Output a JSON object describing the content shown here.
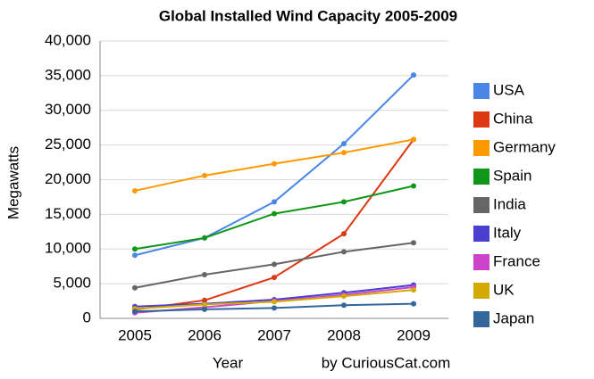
{
  "chart_data": {
    "type": "line",
    "title": "Global Installed Wind Capacity 2005-2009",
    "x_label": "Year",
    "y_label": "Megawatts",
    "annotation": "by CuriousCat.com",
    "categories": [
      "2005",
      "2006",
      "2007",
      "2008",
      "2009"
    ],
    "series": [
      {
        "name": "USA",
        "color": "#4a86e8",
        "values": [
          9100,
          11600,
          16800,
          25200,
          35100
        ]
      },
      {
        "name": "China",
        "color": "#dc3912",
        "values": [
          1260,
          2600,
          5900,
          12200,
          25800
        ]
      },
      {
        "name": "Germany",
        "color": "#ff9900",
        "values": [
          18400,
          20600,
          22300,
          23900,
          25800
        ]
      },
      {
        "name": "Spain",
        "color": "#109618",
        "values": [
          10000,
          11600,
          15100,
          16800,
          19100
        ]
      },
      {
        "name": "India",
        "color": "#666666",
        "values": [
          4400,
          6300,
          7800,
          9600,
          10900
        ]
      },
      {
        "name": "Italy",
        "color": "#4b3fcf",
        "values": [
          1700,
          2100,
          2700,
          3700,
          4800
        ]
      },
      {
        "name": "France",
        "color": "#cc44cc",
        "values": [
          800,
          1600,
          2500,
          3400,
          4500
        ]
      },
      {
        "name": "UK",
        "color": "#d4aa00",
        "values": [
          1400,
          2000,
          2400,
          3200,
          4100
        ]
      },
      {
        "name": "Japan",
        "color": "#336699",
        "values": [
          1000,
          1300,
          1500,
          1900,
          2100
        ]
      }
    ],
    "ylim": [
      0,
      40000
    ],
    "yticks": [
      0,
      {
        "value": 5000,
        "label": "5,000"
      },
      {
        "value": 10000,
        "label": "10,000"
      },
      {
        "value": 15000,
        "label": "15,000"
      },
      {
        "value": 20000,
        "label": "20,000"
      },
      {
        "value": 25000,
        "label": "25,000"
      },
      {
        "value": 30000,
        "label": "30,000"
      },
      {
        "value": 35000,
        "label": "35,000"
      },
      {
        "value": 40000,
        "label": "40,000"
      }
    ],
    "grid": true,
    "legend": "right"
  }
}
